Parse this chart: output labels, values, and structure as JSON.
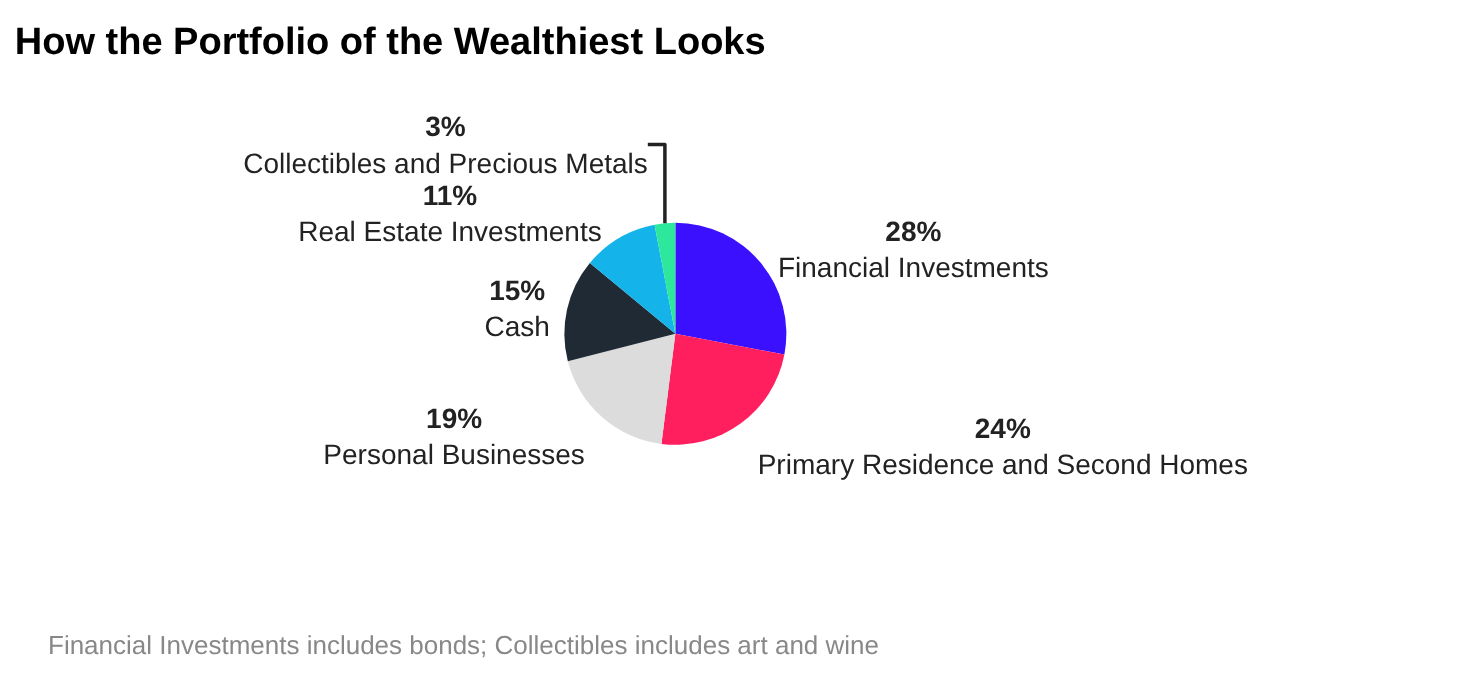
{
  "chart_data": {
    "type": "pie",
    "title": "How the Portfolio of the Wealthiest Looks",
    "categories": [
      "Financial Investments",
      "Primary Residence and Second Homes",
      "Personal Businesses",
      "Cash",
      "Real Estate Investments",
      "Collectibles and Precious Metals"
    ],
    "values": [
      28,
      24,
      19,
      15,
      11,
      3
    ],
    "colors": [
      "#3a10ff",
      "#ff1f5e",
      "#dcdcdc",
      "#1f2a35",
      "#14b3ea",
      "#2de89c"
    ],
    "value_labels": [
      "28%",
      "24%",
      "19%",
      "15%",
      "11%",
      "3%"
    ],
    "annotations": [
      "Financial Investments includes bonds; Collectibles includes art and wine"
    ]
  }
}
